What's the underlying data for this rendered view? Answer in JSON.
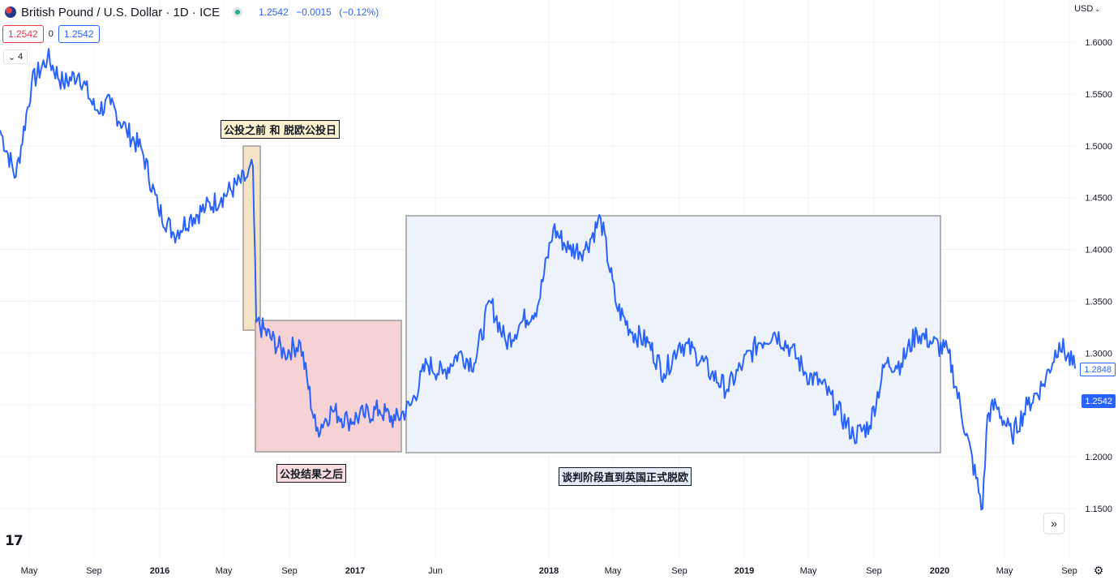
{
  "header": {
    "title": "British Pound / U.S. Dollar · 1D · ICE",
    "last": "1.2542",
    "change": "−0.0015",
    "change_pct": "(−0.12%)",
    "bid": "1.2542",
    "spread": "0",
    "ask": "1.2542",
    "collapse_count": "4",
    "currency": "USD"
  },
  "price_tags": {
    "other": "1.2848",
    "last": "1.2542"
  },
  "colors": {
    "line": "#2962ff",
    "up": "#22ab94",
    "down": "#f23645",
    "zone_before": "#f5e4c3",
    "zone_after": "#f6d2d5",
    "zone_negotiation": "#eef3fb"
  },
  "annotations": [
    {
      "text": "公投之前 和 脱欧公投日",
      "bg": "#fbf1cf"
    },
    {
      "text": "公投结果之后",
      "bg": "#f8dcde"
    },
    {
      "text": "谈判阶段直到英国正式脱欧",
      "bg": "#e3ecf8"
    }
  ],
  "chart_data": {
    "type": "line",
    "title": "British Pound / U.S. Dollar · 1D · ICE",
    "ylim": [
      1.1,
      1.64
    ],
    "y_ticks": [
      "1.6000",
      "1.5500",
      "1.5000",
      "1.4500",
      "1.4000",
      "1.3500",
      "1.3000",
      "1.2500",
      "1.2000",
      "1.1500"
    ],
    "x_ticks": [
      "May",
      "Sep",
      "2016",
      "May",
      "Sep",
      "2017",
      "Jun",
      "2018",
      "May",
      "Sep",
      "2019",
      "May",
      "Sep",
      "2020",
      "May",
      "Sep"
    ],
    "grid": true,
    "x": [
      "2015-03",
      "2015-04",
      "2015-05",
      "2015-06",
      "2015-07",
      "2015-08",
      "2015-09",
      "2015-10",
      "2015-11",
      "2015-12",
      "2016-01",
      "2016-02",
      "2016-03",
      "2016-04",
      "2016-05",
      "2016-06a",
      "2016-06b",
      "2016-07",
      "2016-08",
      "2016-09",
      "2016-10",
      "2016-11",
      "2016-12",
      "2017-01",
      "2017-02",
      "2017-03",
      "2017-04",
      "2017-05",
      "2017-06",
      "2017-07",
      "2017-08",
      "2017-09",
      "2017-10",
      "2017-11",
      "2017-12",
      "2018-01",
      "2018-02",
      "2018-03",
      "2018-04",
      "2018-05",
      "2018-06",
      "2018-07",
      "2018-08",
      "2018-09",
      "2018-10",
      "2018-11",
      "2018-12",
      "2019-01",
      "2019-02",
      "2019-03",
      "2019-04",
      "2019-05",
      "2019-06",
      "2019-07",
      "2019-08",
      "2019-09",
      "2019-10",
      "2019-11",
      "2019-12",
      "2020-01",
      "2020-02",
      "2020-03a",
      "2020-03b",
      "2020-04",
      "2020-05",
      "2020-06",
      "2020-07",
      "2020-08",
      "2020-09"
    ],
    "series": [
      {
        "values": [
          1.515,
          1.47,
          1.56,
          1.585,
          1.56,
          1.57,
          1.535,
          1.54,
          1.515,
          1.495,
          1.44,
          1.415,
          1.43,
          1.44,
          1.45,
          1.47,
          1.48,
          1.33,
          1.3,
          1.31,
          1.225,
          1.245,
          1.235,
          1.24,
          1.245,
          1.235,
          1.25,
          1.29,
          1.28,
          1.3,
          1.29,
          1.35,
          1.31,
          1.33,
          1.345,
          1.42,
          1.4,
          1.4,
          1.43,
          1.345,
          1.32,
          1.31,
          1.28,
          1.31,
          1.3,
          1.28,
          1.265,
          1.29,
          1.31,
          1.32,
          1.305,
          1.28,
          1.27,
          1.245,
          1.22,
          1.23,
          1.29,
          1.29,
          1.32,
          1.31,
          1.3,
          1.15,
          1.24,
          1.25,
          1.22,
          1.25,
          1.27,
          1.31,
          1.285
        ]
      }
    ]
  }
}
